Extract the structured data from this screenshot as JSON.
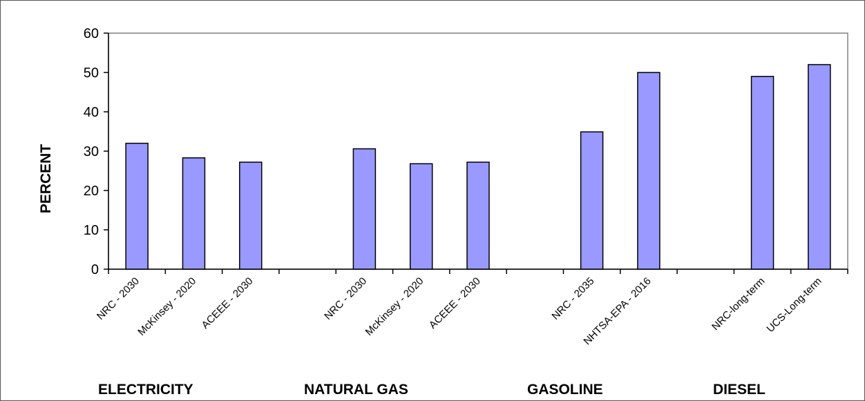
{
  "chart_data": {
    "type": "bar",
    "title": "",
    "xlabel": "",
    "ylabel": "PERCENT",
    "ylim": [
      0,
      60
    ],
    "yticks": [
      0,
      10,
      20,
      30,
      40,
      50,
      60
    ],
    "grid": false,
    "bar_color": "#9999ff",
    "bar_outline_color": "#000000",
    "plot_border_color": "#808080",
    "slots": [
      "NRC - 2030",
      "McKinsey - 2020",
      "ACEEE - 2030",
      "",
      "NRC - 2030",
      "McKinsey - 2020",
      "ACEEE - 2030",
      "",
      "NRC - 2035",
      "NHTSA-EPA - 2016",
      "",
      "NRC-long-term",
      "UCS-Long-term"
    ],
    "categories": [
      "NRC - 2030",
      "McKinsey - 2020",
      "ACEEE - 2030",
      "NRC - 2030",
      "McKinsey - 2020",
      "ACEEE - 2030",
      "NRC - 2035",
      "NHTSA-EPA - 2016",
      "NRC-long-term",
      "UCS-Long-term"
    ],
    "values": [
      32,
      28.3,
      27.2,
      30.6,
      26.8,
      27.2,
      34.9,
      50,
      49,
      52
    ],
    "groups": [
      {
        "name": "ELECTRICITY",
        "categories": [
          "NRC - 2030",
          "McKinsey - 2020",
          "ACEEE - 2030"
        ]
      },
      {
        "name": "NATURAL GAS",
        "categories": [
          "NRC - 2030",
          "McKinsey - 2020",
          "ACEEE - 2030"
        ]
      },
      {
        "name": "GASOLINE",
        "categories": [
          "NRC - 2035",
          "NHTSA-EPA - 2016"
        ]
      },
      {
        "name": "DIESEL",
        "categories": [
          "NRC-long-term",
          "UCS-Long-term"
        ]
      }
    ]
  }
}
